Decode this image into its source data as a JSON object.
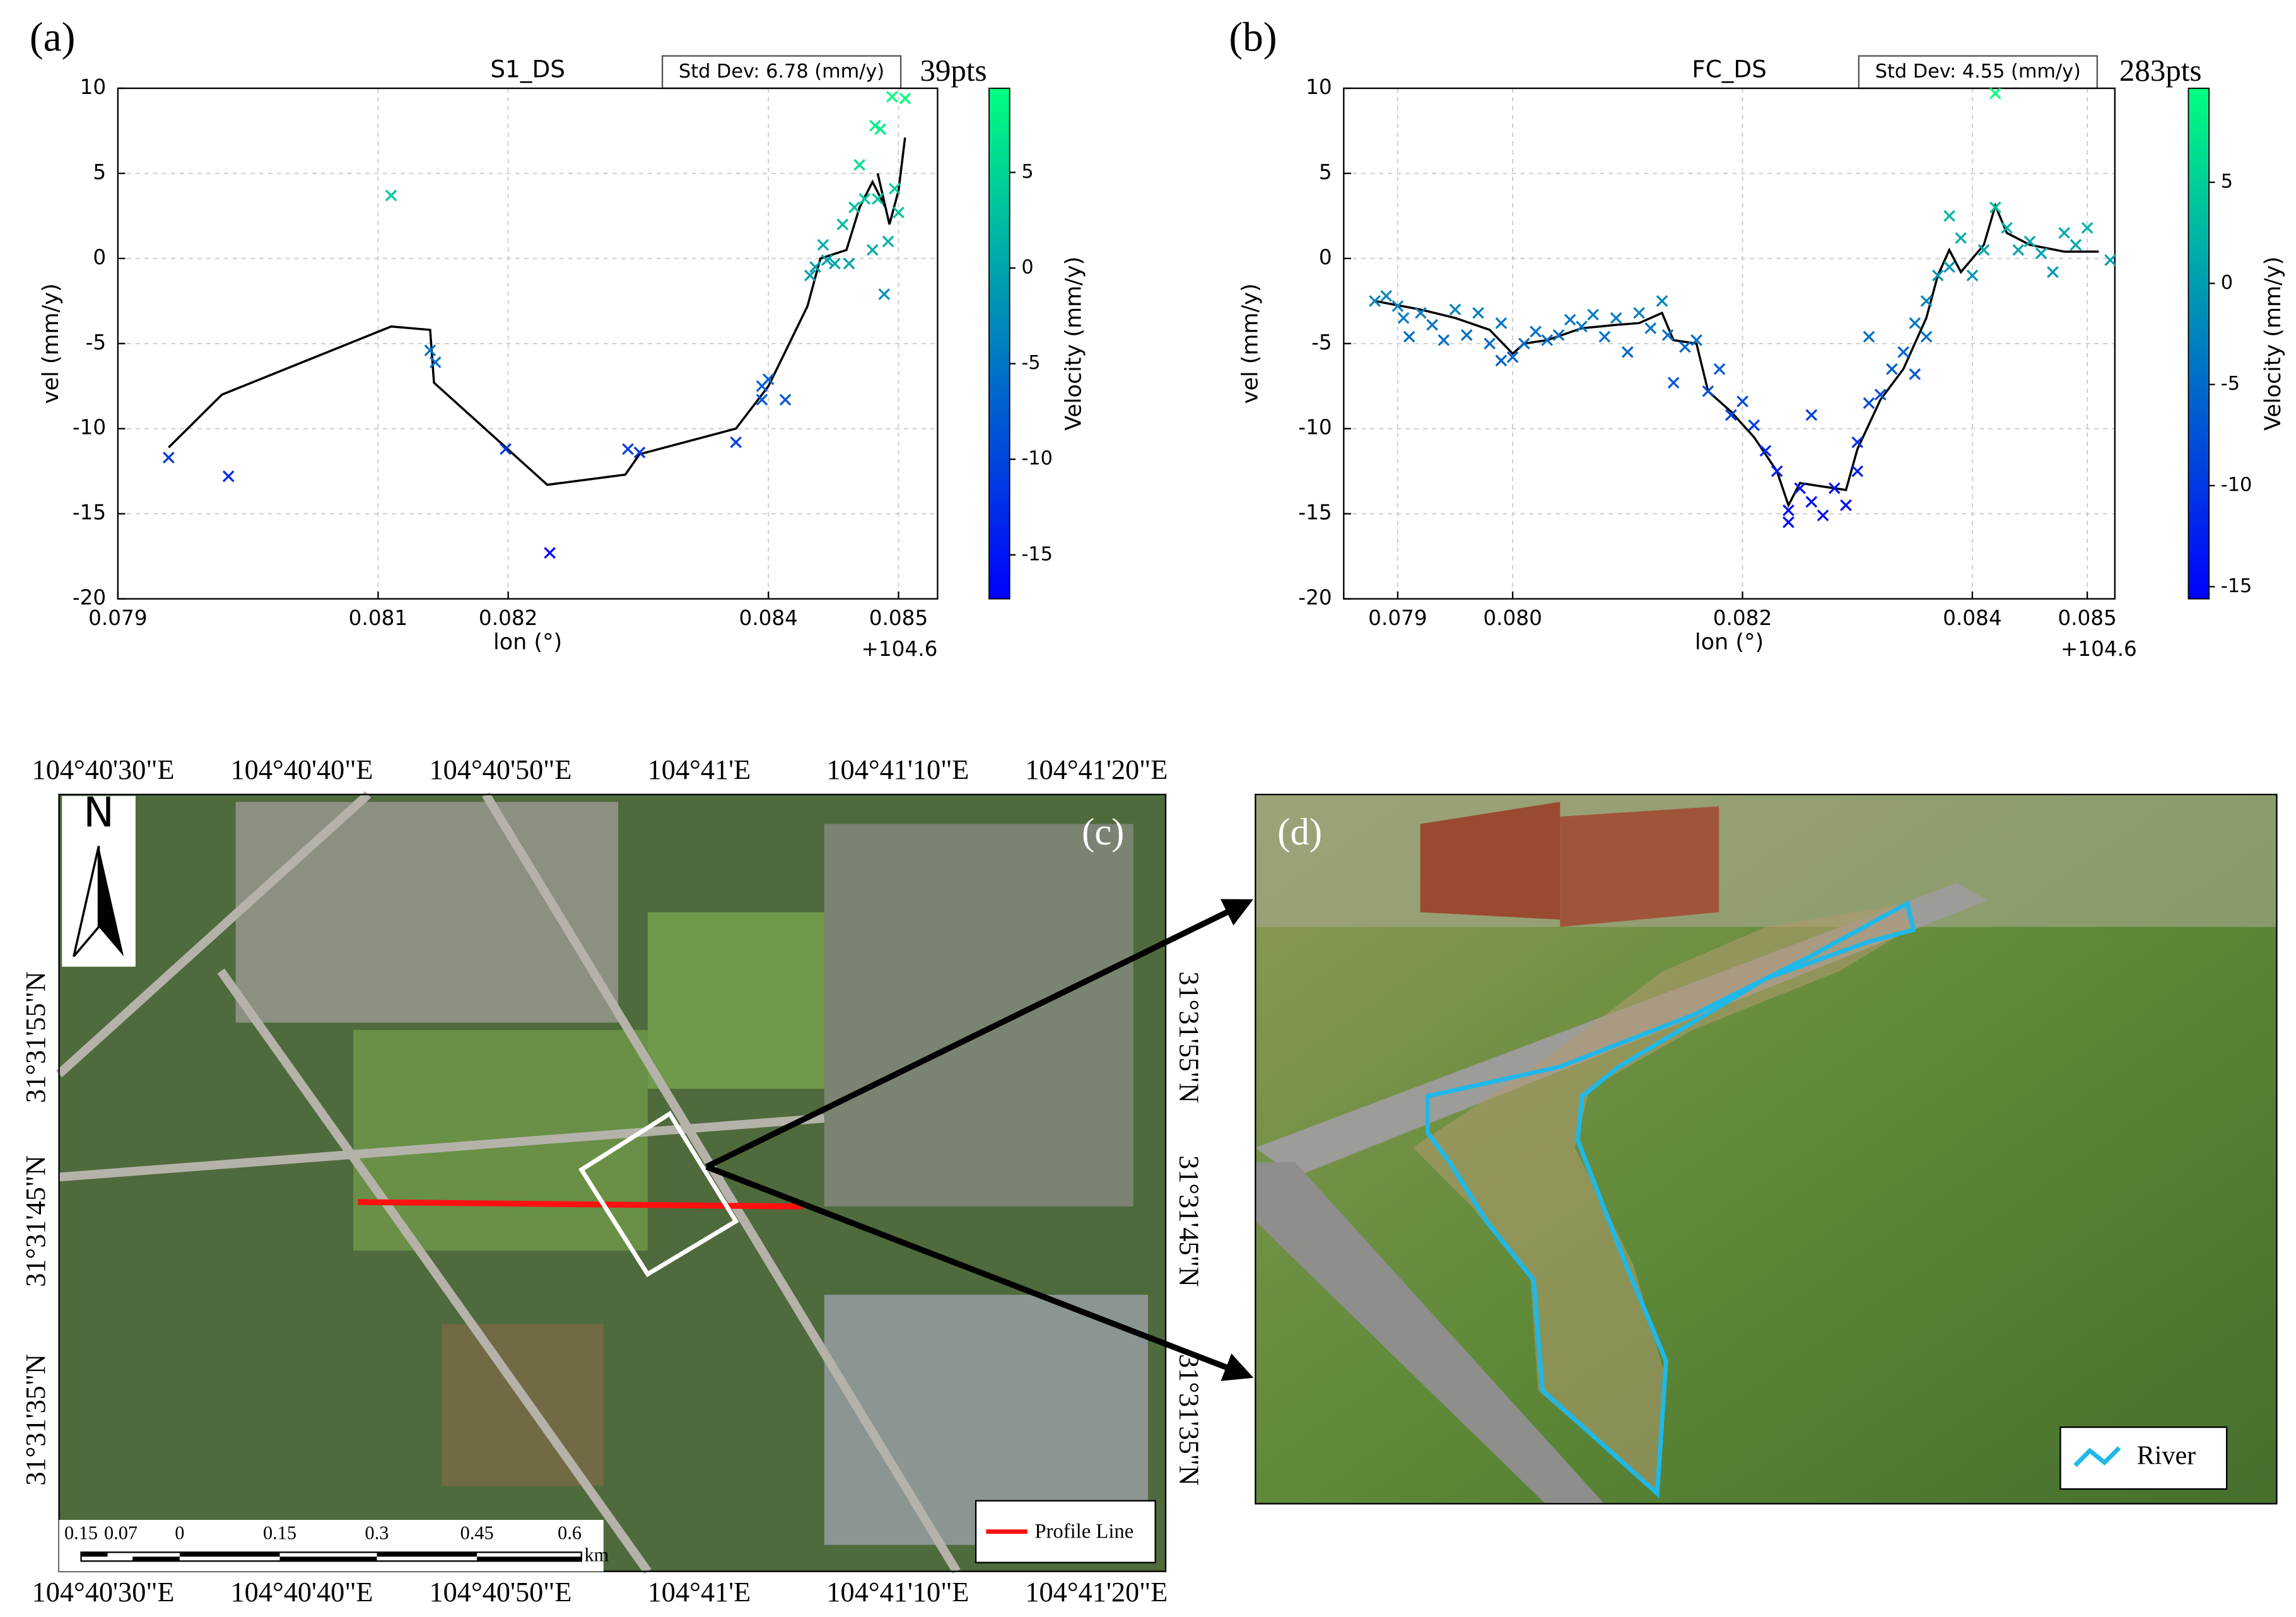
{
  "chart_data": [
    {
      "type": "scatter",
      "panel_label": "(a)",
      "title": "S1_DS",
      "annotation": "Std Dev: 6.78 (mm/y)",
      "count_label": "39pts",
      "x_label": "lon (°)",
      "y_label": "vel (mm/y)",
      "x_offset_label": "+104.6",
      "colorbar_label": "Velocity (mm/y)",
      "xlim": [
        0.079,
        0.0853
      ],
      "ylim": [
        -20,
        10
      ],
      "xticks": [
        0.079,
        0.081,
        0.082,
        0.084,
        0.085
      ],
      "yticks": [
        10,
        5,
        0,
        -5,
        -10,
        -15,
        -20
      ],
      "clim": [
        -17.3,
        9.4
      ],
      "cticks": [
        5,
        0,
        -5,
        -10,
        -15
      ],
      "cmap": [
        "#0000ff",
        "#00ff80"
      ],
      "grid": true,
      "points": {
        "x": [
          0.07939,
          0.07985,
          0.0811,
          0.0814,
          0.08144,
          0.08198,
          0.08232,
          0.08292,
          0.08301,
          0.08375,
          0.08395,
          0.08395,
          0.084,
          0.08413,
          0.08432,
          0.08436,
          0.08442,
          0.08445,
          0.08451,
          0.08457,
          0.08462,
          0.08466,
          0.0847,
          0.08474,
          0.0848,
          0.08482,
          0.08486,
          0.08484,
          0.08489,
          0.08492,
          0.08495,
          0.08497,
          0.085,
          0.08505
        ],
        "y": [
          -11.7,
          -12.8,
          3.7,
          -5.4,
          -6.1,
          -11.2,
          -17.3,
          -11.2,
          -11.4,
          -10.8,
          -7.5,
          -8.3,
          -7.1,
          -8.3,
          -1.0,
          -0.5,
          0.8,
          -0.1,
          -0.3,
          2.0,
          -0.3,
          3.0,
          5.5,
          3.5,
          0.5,
          7.8,
          7.6,
          3.5,
          -2.1,
          1.0,
          9.5,
          4.1,
          2.7,
          9.4
        ]
      },
      "trend": {
        "color": "#000000",
        "x": [
          0.07939,
          0.0798,
          0.0811,
          0.0814,
          0.08143,
          0.0823,
          0.0829,
          0.08301,
          0.08375,
          0.084,
          0.0843,
          0.0844,
          0.0846,
          0.0847,
          0.0848,
          0.0849,
          0.08484,
          0.08493,
          0.085,
          0.08505
        ],
        "y": [
          -11.1,
          -8.0,
          -4.0,
          -4.2,
          -7.3,
          -13.3,
          -12.7,
          -11.5,
          -10.0,
          -7.5,
          -2.8,
          0.0,
          0.5,
          3.0,
          4.5,
          3.0,
          5.0,
          2.0,
          4.0,
          7.1
        ]
      }
    },
    {
      "type": "scatter",
      "panel_label": "(b)",
      "title": "FC_DS",
      "annotation": "Std Dev: 4.55 (mm/y)",
      "count_label": "283pts",
      "x_label": "lon (°)",
      "y_label": "vel (mm/y)",
      "x_offset_label": "+104.6",
      "colorbar_label": "Velocity (mm/y)",
      "xlim": [
        0.07853,
        0.08524
      ],
      "ylim": [
        -20,
        10
      ],
      "xticks": [
        0.079,
        {
          "value": 0.08,
          "label": "0.080"
        },
        0.082,
        0.084,
        0.085
      ],
      "yticks": [
        10,
        5,
        0,
        -5,
        -10,
        -15,
        -20
      ],
      "clim": [
        -15.6,
        9.65
      ],
      "cticks": [
        5,
        0,
        -5,
        -10,
        -15
      ],
      "cmap": [
        "#0000ff",
        "#00ff80"
      ],
      "grid": true,
      "points": {
        "x": [
          0.0788,
          0.0789,
          0.079,
          0.07905,
          0.0791,
          0.0792,
          0.0793,
          0.0794,
          0.0795,
          0.0796,
          0.0797,
          0.0798,
          0.0799,
          0.0799,
          0.08,
          0.0801,
          0.0802,
          0.0803,
          0.0804,
          0.0805,
          0.0806,
          0.0807,
          0.0808,
          0.0809,
          0.081,
          0.0811,
          0.0812,
          0.0813,
          0.08135,
          0.0814,
          0.0815,
          0.0816,
          0.0817,
          0.0818,
          0.0819,
          0.082,
          0.0821,
          0.0822,
          0.0823,
          0.0824,
          0.0824,
          0.0825,
          0.0826,
          0.0826,
          0.0827,
          0.0828,
          0.0829,
          0.083,
          0.083,
          0.0831,
          0.0831,
          0.0832,
          0.0833,
          0.0834,
          0.0835,
          0.0835,
          0.0836,
          0.0836,
          0.0837,
          0.0838,
          0.0838,
          0.0839,
          0.084,
          0.0841,
          0.0842,
          0.0842,
          0.0843,
          0.0844,
          0.0845,
          0.0846,
          0.0847,
          0.0848,
          0.0849,
          0.085,
          0.0852
        ],
        "y": [
          -2.5,
          -2.2,
          -2.8,
          -3.5,
          -4.6,
          -3.2,
          -3.9,
          -4.8,
          -3.0,
          -4.5,
          -3.2,
          -5.0,
          -3.8,
          -6.0,
          -5.8,
          -5.0,
          -4.3,
          -4.8,
          -4.5,
          -3.6,
          -4.0,
          -3.3,
          -4.6,
          -3.5,
          -5.5,
          -3.2,
          -4.1,
          -2.5,
          -4.5,
          -7.3,
          -5.2,
          -4.8,
          -7.8,
          -6.5,
          -9.2,
          -8.4,
          -9.8,
          -11.3,
          -12.5,
          -14.8,
          -15.5,
          -13.5,
          -14.3,
          -9.2,
          -15.1,
          -13.5,
          -14.5,
          -12.5,
          -10.8,
          -8.5,
          -4.6,
          -8.0,
          -6.5,
          -5.5,
          -3.8,
          -6.8,
          -2.5,
          -4.6,
          -1.0,
          2.5,
          -0.5,
          1.2,
          -1.0,
          0.5,
          9.7,
          3.0,
          1.8,
          0.5,
          1.0,
          0.3,
          -0.8,
          1.5,
          0.8,
          1.8,
          -0.1
        ]
      },
      "trend": {
        "color": "#000000",
        "x": [
          0.0788,
          0.0792,
          0.0795,
          0.0798,
          0.08,
          0.0801,
          0.0803,
          0.0806,
          0.0809,
          0.0811,
          0.0813,
          0.0814,
          0.0816,
          0.0817,
          0.0819,
          0.0821,
          0.0823,
          0.0824,
          0.0825,
          0.0827,
          0.0829,
          0.083,
          0.0832,
          0.0834,
          0.0836,
          0.0837,
          0.0838,
          0.0839,
          0.0841,
          0.0842,
          0.0843,
          0.0845,
          0.0848,
          0.0851
        ],
        "y": [
          -2.5,
          -3.0,
          -3.5,
          -4.2,
          -5.6,
          -5.0,
          -4.8,
          -4.1,
          -3.9,
          -3.8,
          -3.2,
          -4.8,
          -5.0,
          -7.8,
          -9.0,
          -10.5,
          -12.5,
          -14.5,
          -13.2,
          -13.4,
          -13.6,
          -11.2,
          -8.3,
          -6.5,
          -3.5,
          -1.0,
          0.5,
          -0.8,
          0.8,
          3.1,
          1.5,
          0.8,
          0.4,
          0.4
        ]
      }
    }
  ],
  "map_c": {
    "panel_label": "(c)",
    "lon_labels": [
      "104°40'30\"E",
      "104°40'40\"E",
      "104°40'50\"E",
      "104°41'E",
      "104°41'10\"E",
      "104°41'20\"E"
    ],
    "lat_labels": [
      "31°31'55\"N",
      "31°31'45\"N",
      "31°31'35\"N"
    ],
    "north": "N",
    "scale_labels": [
      "0.15",
      "0.07",
      "0",
      "0.15",
      "0.3",
      "0.45",
      "0.6"
    ],
    "scale_unit": "km",
    "legend": "Profile Line"
  },
  "map_d": {
    "panel_label": "(d)",
    "legend": "River"
  }
}
